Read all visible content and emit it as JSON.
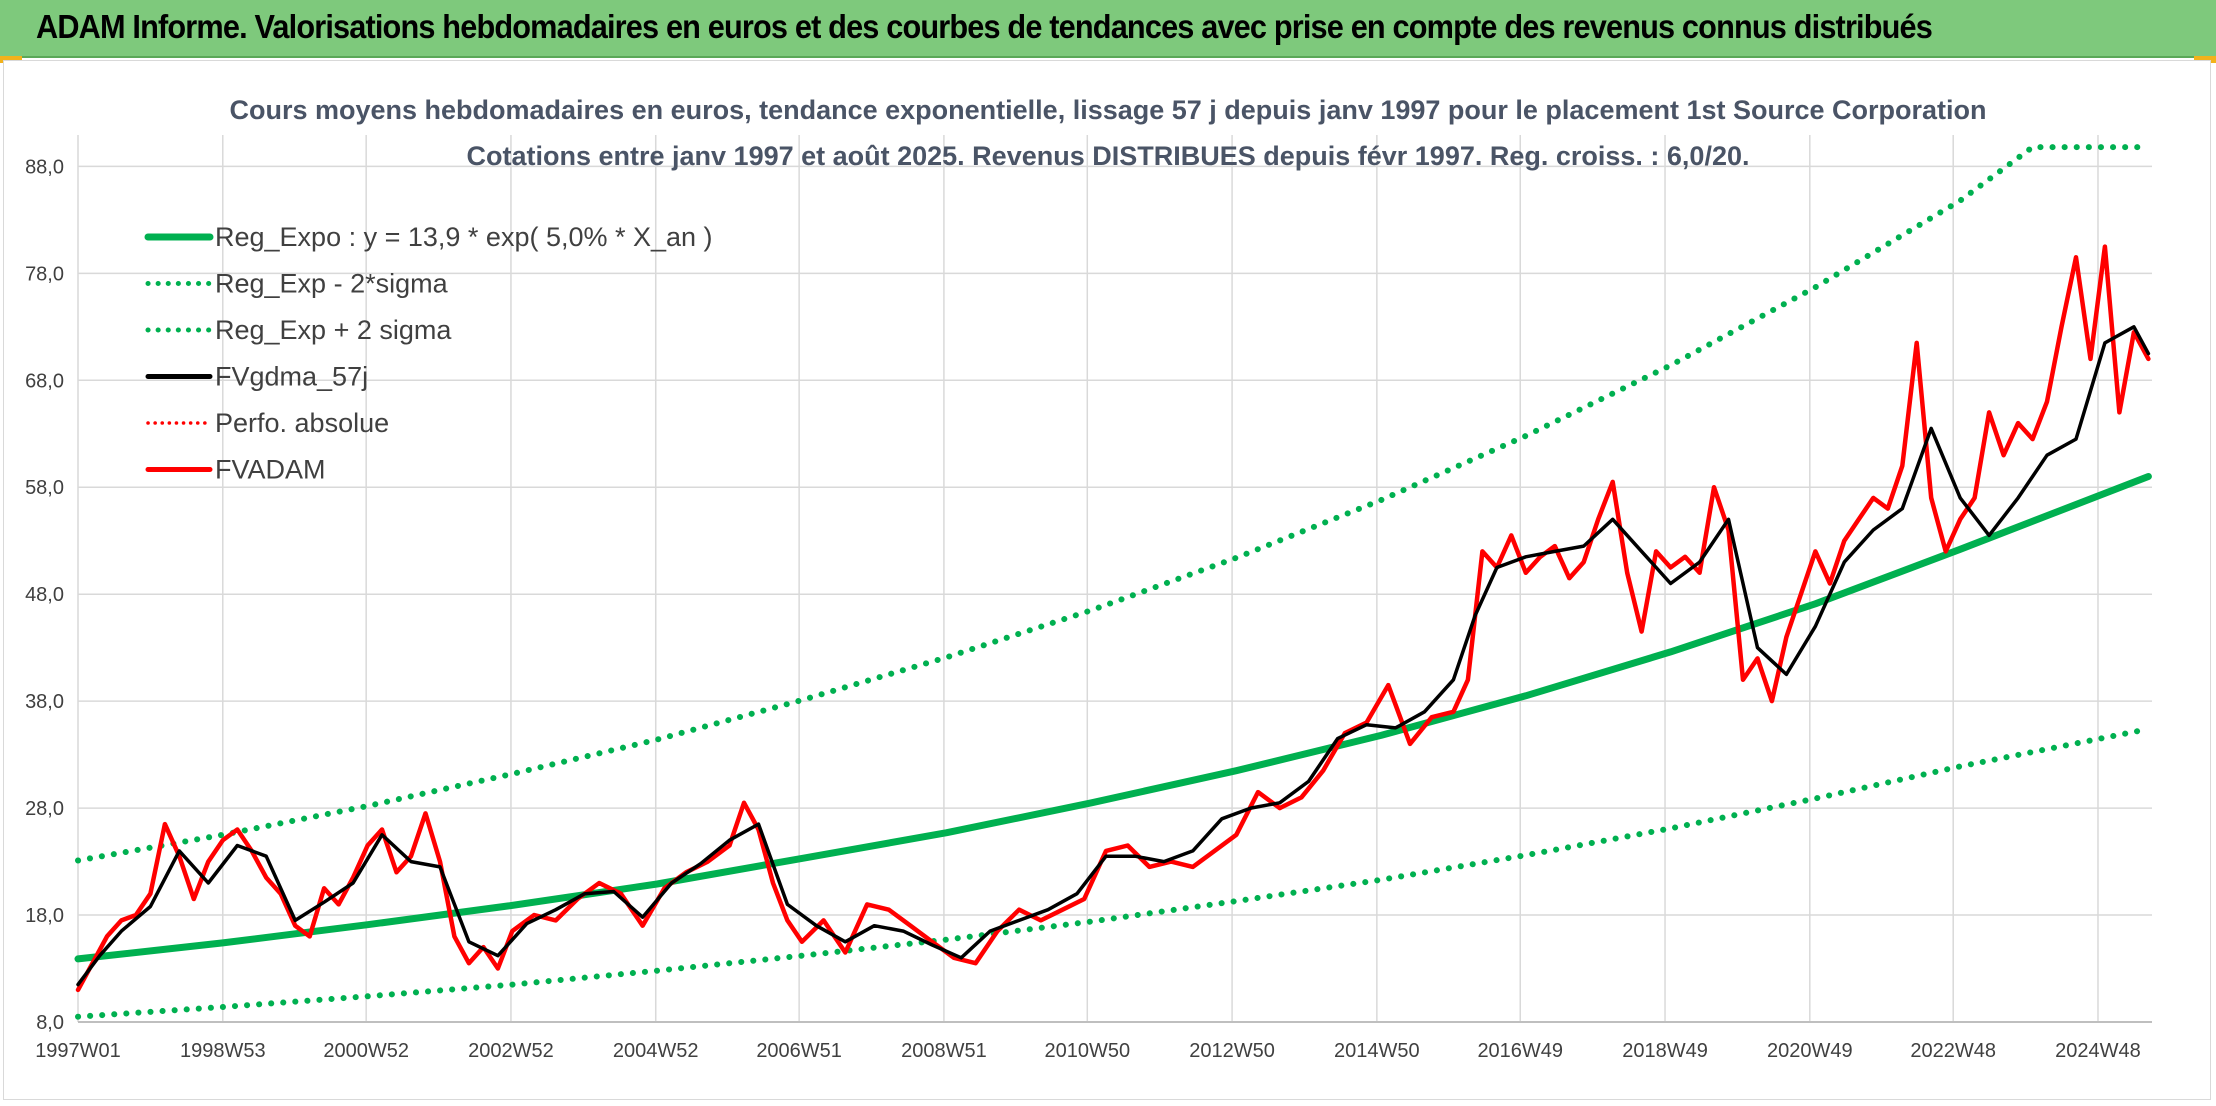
{
  "header": {
    "title": "ADAM Informe. Valorisations hebdomadaires en euros et des courbes de tendances avec prise en compte des revenus connus distribués"
  },
  "colors": {
    "header_bg": "#7ec97c",
    "green": "#00b050",
    "red": "#ff0000",
    "black": "#000000",
    "grid": "#d9d9d9",
    "accent_corner": "#f2b21b"
  },
  "chart_data": {
    "type": "line",
    "title": [
      "Cours moyens hebdomadaires en euros, tendance exponentielle, lissage 57 j depuis janv 1997 pour le placement 1st Source Corporation",
      "Cotations entre janv 1997 et août 2025. Revenus DISTRIBUES depuis févr 1997. Reg. croiss. : 6,0/20."
    ],
    "xlabel": "",
    "ylabel": "",
    "ylim": [
      8,
      90
    ],
    "xlim": [
      1997.0,
      2025.65
    ],
    "y_ticks": [
      "8,0",
      "18,0",
      "28,0",
      "38,0",
      "48,0",
      "58,0",
      "68,0",
      "78,0",
      "88,0"
    ],
    "x_ticks": [
      "1997W01",
      "1998W53",
      "2000W52",
      "2002W52",
      "2004W52",
      "2006W51",
      "2008W51",
      "2010W50",
      "2012W50",
      "2014W50",
      "2016W49",
      "2018W49",
      "2020W49",
      "2022W48",
      "2024W48"
    ],
    "grid": true,
    "legend_position": "top-left",
    "legend": [
      {
        "label": "Reg_Expo : y = 13,9 * exp( 5,0% *  X_an )",
        "color": "#00b050",
        "style": "solid"
      },
      {
        "label": "Reg_Exp - 2*sigma",
        "color": "#00b050",
        "style": "dotted"
      },
      {
        "label": "Reg_Exp + 2 sigma",
        "color": "#00b050",
        "style": "dotted"
      },
      {
        "label": "FVgdma_57j",
        "color": "#000000",
        "style": "solid"
      },
      {
        "label": "Perfo. absolue",
        "color": "#ff0000",
        "style": "dotted"
      },
      {
        "label": "FVADAM",
        "color": "#ff0000",
        "style": "solid"
      }
    ],
    "series": [
      {
        "name": "Reg_Expo : y = 13,9 * exp( 5,0% *  X_an )",
        "color": "#00b050",
        "style": "solid",
        "x": [
          1997.0,
          1999.0,
          2001.0,
          2003.0,
          2005.0,
          2007.0,
          2009.0,
          2011.0,
          2013.0,
          2015.0,
          2017.0,
          2019.0,
          2021.0,
          2023.0,
          2025.6
        ],
        "y": [
          13.9,
          15.4,
          17.1,
          18.9,
          20.9,
          23.3,
          25.7,
          28.5,
          31.5,
          34.8,
          38.5,
          42.6,
          47.1,
          52.2,
          59.0
        ]
      },
      {
        "name": "Reg_Exp - 2*sigma",
        "color": "#00b050",
        "style": "dotted",
        "x": [
          1997.0,
          1999.0,
          2001.0,
          2003.0,
          2005.0,
          2007.0,
          2009.0,
          2011.0,
          2013.0,
          2015.0,
          2017.0,
          2019.0,
          2021.0,
          2023.0,
          2025.6
        ],
        "y": [
          8.5,
          9.4,
          10.4,
          11.5,
          12.8,
          14.2,
          15.7,
          17.4,
          19.3,
          21.3,
          23.6,
          26.1,
          28.9,
          31.9,
          35.4
        ]
      },
      {
        "name": "Reg_Exp + 2 sigma",
        "color": "#00b050",
        "style": "dotted",
        "x": [
          1997.0,
          1999.0,
          2001.0,
          2003.0,
          2005.0,
          2007.0,
          2009.0,
          2011.0,
          2013.0,
          2015.0,
          2017.0,
          2019.0,
          2021.0,
          2023.0,
          2024.0,
          2025.6
        ],
        "y": [
          23.1,
          25.5,
          28.2,
          31.2,
          34.4,
          38.1,
          42.1,
          46.5,
          51.4,
          56.8,
          62.8,
          69.4,
          76.7,
          84.8,
          89.8,
          89.8
        ]
      },
      {
        "name": "FVgdma_57j",
        "color": "#000000",
        "style": "solid",
        "x": [
          1997.0,
          1997.3,
          1997.6,
          1998.0,
          1998.4,
          1998.8,
          1999.2,
          1999.6,
          2000.0,
          2000.4,
          2000.8,
          2001.2,
          2001.6,
          2002.0,
          2002.4,
          2002.8,
          2003.2,
          2003.6,
          2004.0,
          2004.4,
          2004.8,
          2005.2,
          2005.6,
          2006.0,
          2006.4,
          2006.8,
          2007.2,
          2007.6,
          2008.0,
          2008.4,
          2008.8,
          2009.2,
          2009.6,
          2010.0,
          2010.4,
          2010.8,
          2011.2,
          2011.6,
          2012.0,
          2012.4,
          2012.8,
          2013.2,
          2013.6,
          2014.0,
          2014.4,
          2014.8,
          2015.2,
          2015.6,
          2016.0,
          2016.3,
          2016.6,
          2017.0,
          2017.4,
          2017.8,
          2018.2,
          2018.6,
          2019.0,
          2019.4,
          2019.8,
          2020.2,
          2020.6,
          2021.0,
          2021.4,
          2021.8,
          2022.2,
          2022.6,
          2023.0,
          2023.4,
          2023.8,
          2024.2,
          2024.6,
          2025.0,
          2025.4,
          2025.6
        ],
        "y": [
          11.5,
          14.2,
          16.5,
          18.8,
          24.0,
          21.0,
          24.5,
          23.5,
          17.5,
          19.2,
          21.0,
          25.5,
          23.0,
          22.5,
          15.5,
          14.2,
          17.2,
          18.5,
          20.0,
          20.2,
          17.8,
          21.0,
          22.8,
          25.0,
          26.5,
          19.0,
          17.0,
          15.5,
          17.0,
          16.5,
          15.2,
          14.0,
          16.5,
          17.5,
          18.5,
          20.0,
          23.5,
          23.5,
          23.0,
          24.0,
          27.0,
          28.0,
          28.5,
          30.5,
          34.5,
          35.8,
          35.5,
          37.0,
          40.0,
          46.0,
          50.5,
          51.5,
          52.0,
          52.5,
          55.0,
          52.0,
          49.0,
          51.0,
          55.0,
          43.0,
          40.5,
          45.0,
          51.0,
          54.0,
          56.0,
          63.5,
          57.0,
          53.5,
          57.0,
          61.0,
          62.5,
          71.5,
          73.0,
          70.5
        ]
      },
      {
        "name": "FVADAM",
        "color": "#ff0000",
        "style": "solid",
        "x": [
          1997.0,
          1997.2,
          1997.4,
          1997.6,
          1997.8,
          1998.0,
          1998.2,
          1998.4,
          1998.6,
          1998.8,
          1999.0,
          1999.2,
          1999.4,
          1999.6,
          1999.8,
          2000.0,
          2000.2,
          2000.4,
          2000.6,
          2000.8,
          2001.0,
          2001.2,
          2001.4,
          2001.6,
          2001.8,
          2002.0,
          2002.2,
          2002.4,
          2002.6,
          2002.8,
          2003.0,
          2003.3,
          2003.6,
          2003.9,
          2004.2,
          2004.5,
          2004.8,
          2005.1,
          2005.4,
          2005.7,
          2006.0,
          2006.2,
          2006.4,
          2006.6,
          2006.8,
          2007.0,
          2007.3,
          2007.6,
          2007.9,
          2008.2,
          2008.5,
          2008.8,
          2009.1,
          2009.4,
          2009.7,
          2010.0,
          2010.3,
          2010.6,
          2010.9,
          2011.2,
          2011.5,
          2011.8,
          2012.1,
          2012.4,
          2012.7,
          2013.0,
          2013.3,
          2013.6,
          2013.9,
          2014.2,
          2014.5,
          2014.8,
          2015.1,
          2015.4,
          2015.7,
          2016.0,
          2016.2,
          2016.4,
          2016.6,
          2016.8,
          2017.0,
          2017.2,
          2017.4,
          2017.6,
          2017.8,
          2018.0,
          2018.2,
          2018.4,
          2018.6,
          2018.8,
          2019.0,
          2019.2,
          2019.4,
          2019.6,
          2019.8,
          2020.0,
          2020.2,
          2020.4,
          2020.6,
          2020.8,
          2021.0,
          2021.2,
          2021.4,
          2021.6,
          2021.8,
          2022.0,
          2022.2,
          2022.4,
          2022.6,
          2022.8,
          2023.0,
          2023.2,
          2023.4,
          2023.6,
          2023.8,
          2024.0,
          2024.2,
          2024.4,
          2024.6,
          2024.8,
          2025.0,
          2025.2,
          2025.4,
          2025.6
        ],
        "y": [
          11.0,
          13.5,
          16.0,
          17.5,
          18.0,
          20.0,
          26.5,
          23.5,
          19.5,
          23.0,
          25.0,
          26.0,
          24.0,
          21.5,
          20.0,
          17.0,
          16.0,
          20.5,
          19.0,
          21.5,
          24.5,
          26.0,
          22.0,
          23.5,
          27.5,
          23.0,
          16.0,
          13.5,
          15.0,
          13.0,
          16.5,
          18.0,
          17.5,
          19.5,
          21.0,
          20.0,
          17.0,
          20.5,
          22.0,
          23.0,
          24.5,
          28.5,
          26.0,
          21.0,
          17.5,
          15.5,
          17.5,
          14.5,
          19.0,
          18.5,
          17.0,
          15.5,
          14.0,
          13.5,
          16.5,
          18.5,
          17.5,
          18.5,
          19.5,
          24.0,
          24.5,
          22.5,
          23.0,
          22.5,
          24.0,
          25.5,
          29.5,
          28.0,
          29.0,
          31.5,
          35.0,
          36.0,
          39.5,
          34.0,
          36.5,
          37.0,
          40.0,
          52.0,
          50.5,
          53.5,
          50.0,
          51.5,
          52.5,
          49.5,
          51.0,
          55.0,
          58.5,
          50.0,
          44.5,
          52.0,
          50.5,
          51.5,
          50.0,
          58.0,
          54.0,
          40.0,
          42.0,
          38.0,
          44.0,
          48.0,
          52.0,
          49.0,
          53.0,
          55.0,
          57.0,
          56.0,
          60.0,
          71.5,
          57.0,
          52.0,
          55.0,
          57.0,
          65.0,
          61.0,
          64.0,
          62.5,
          66.0,
          73.0,
          79.5,
          70.0,
          80.5,
          65.0,
          72.5,
          70.0
        ]
      }
    ]
  }
}
